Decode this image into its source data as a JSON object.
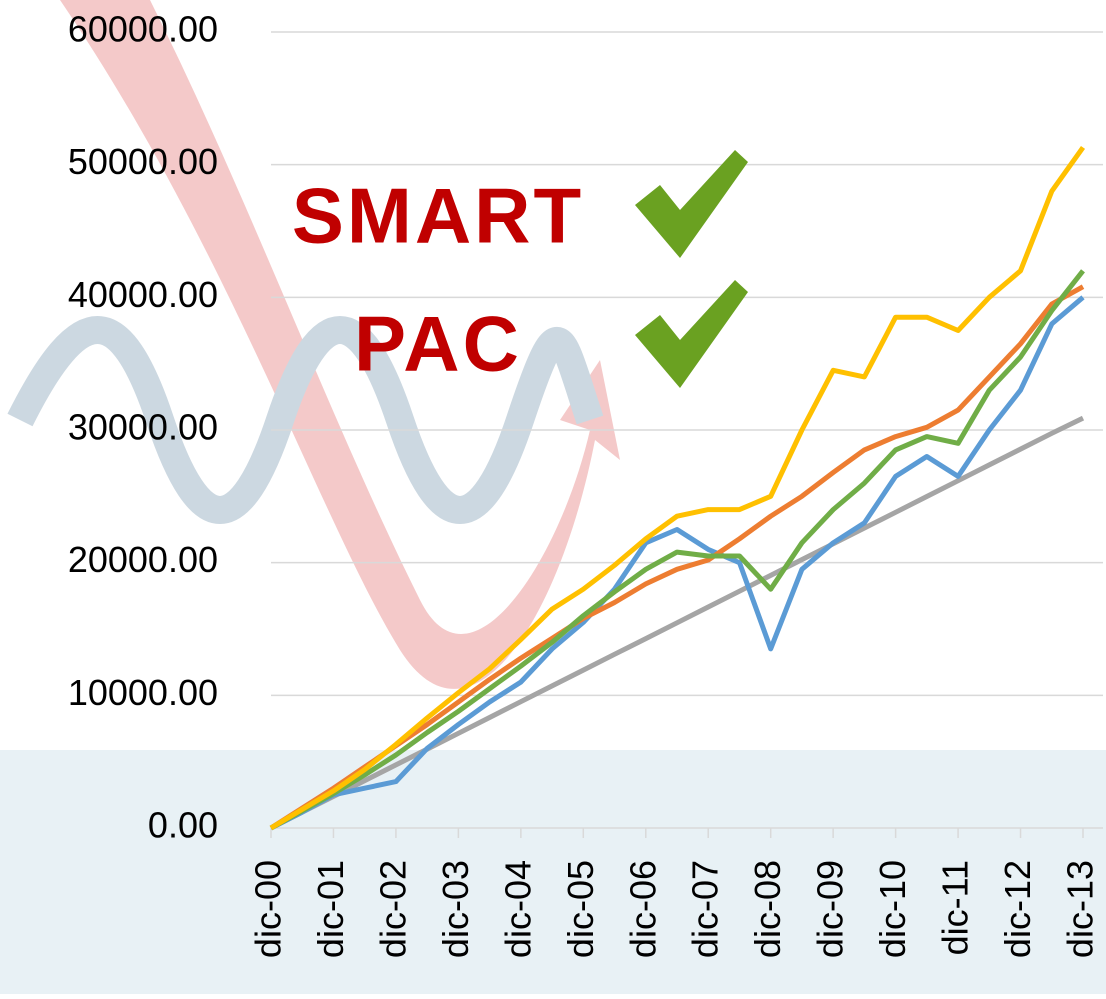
{
  "chart_data": {
    "type": "line",
    "annotations": [
      "SMART",
      "PAC"
    ],
    "categories": [
      "dic-00",
      null,
      "dic-01",
      null,
      "dic-02",
      null,
      "dic-03",
      null,
      "dic-04",
      null,
      "dic-05",
      null,
      "dic-06",
      null,
      "dic-07",
      null,
      "dic-08",
      null,
      "dic-09",
      null,
      "dic-10",
      null,
      "dic-11",
      null,
      "dic-12",
      null,
      "dic-13"
    ],
    "series": [
      {
        "color": "#a5a5a5",
        "values": [
          0,
          1190,
          2380,
          3570,
          4760,
          5950,
          7140,
          8330,
          9520,
          10710,
          11900,
          13090,
          14280,
          15470,
          16660,
          17850,
          19040,
          20230,
          21420,
          22610,
          23800,
          24990,
          26180,
          27370,
          28560,
          29750,
          30900
        ]
      },
      {
        "color": "#5b9bd5",
        "values": [
          0,
          1200,
          2500,
          3000,
          3500,
          6000,
          7800,
          9500,
          11000,
          13500,
          15500,
          18000,
          21500,
          22500,
          21000,
          20000,
          13500,
          19500,
          21500,
          23000,
          26500,
          28000,
          26500,
          30000,
          33000,
          38000,
          40000
        ]
      },
      {
        "color": "#ed7d31",
        "values": [
          0,
          1500,
          3000,
          4600,
          6200,
          7800,
          9500,
          11200,
          12800,
          14300,
          15800,
          17000,
          18400,
          19500,
          20200,
          21800,
          23500,
          25000,
          26800,
          28500,
          29500,
          30200,
          31500,
          34000,
          36500,
          39500,
          40800
        ]
      },
      {
        "color": "#70ad47",
        "values": [
          0,
          1300,
          2600,
          4000,
          5500,
          7200,
          8800,
          10500,
          12200,
          14000,
          16000,
          17800,
          19500,
          20800,
          20500,
          20500,
          18000,
          21500,
          24000,
          26000,
          28500,
          29500,
          29000,
          33000,
          35500,
          39000,
          42000
        ]
      },
      {
        "color": "#ffc000",
        "values": [
          0,
          1400,
          2800,
          4400,
          6300,
          8300,
          10200,
          12000,
          14200,
          16500,
          18000,
          19800,
          21800,
          23500,
          24000,
          24000,
          25000,
          30000,
          34500,
          34000,
          38500,
          38500,
          37500,
          40000,
          42000,
          48000,
          51300
        ]
      }
    ],
    "ylim": [
      0,
      60000
    ],
    "yticks": [
      {
        "value": 0,
        "label": "0.00"
      },
      {
        "value": 10000,
        "label": "10000.00"
      },
      {
        "value": 20000,
        "label": "20000.00"
      },
      {
        "value": 30000,
        "label": "30000.00"
      },
      {
        "value": 40000,
        "label": "40000.00"
      },
      {
        "value": 50000,
        "label": "50000.00"
      },
      {
        "value": 60000,
        "label": "60000.00"
      }
    ],
    "grid": true
  }
}
